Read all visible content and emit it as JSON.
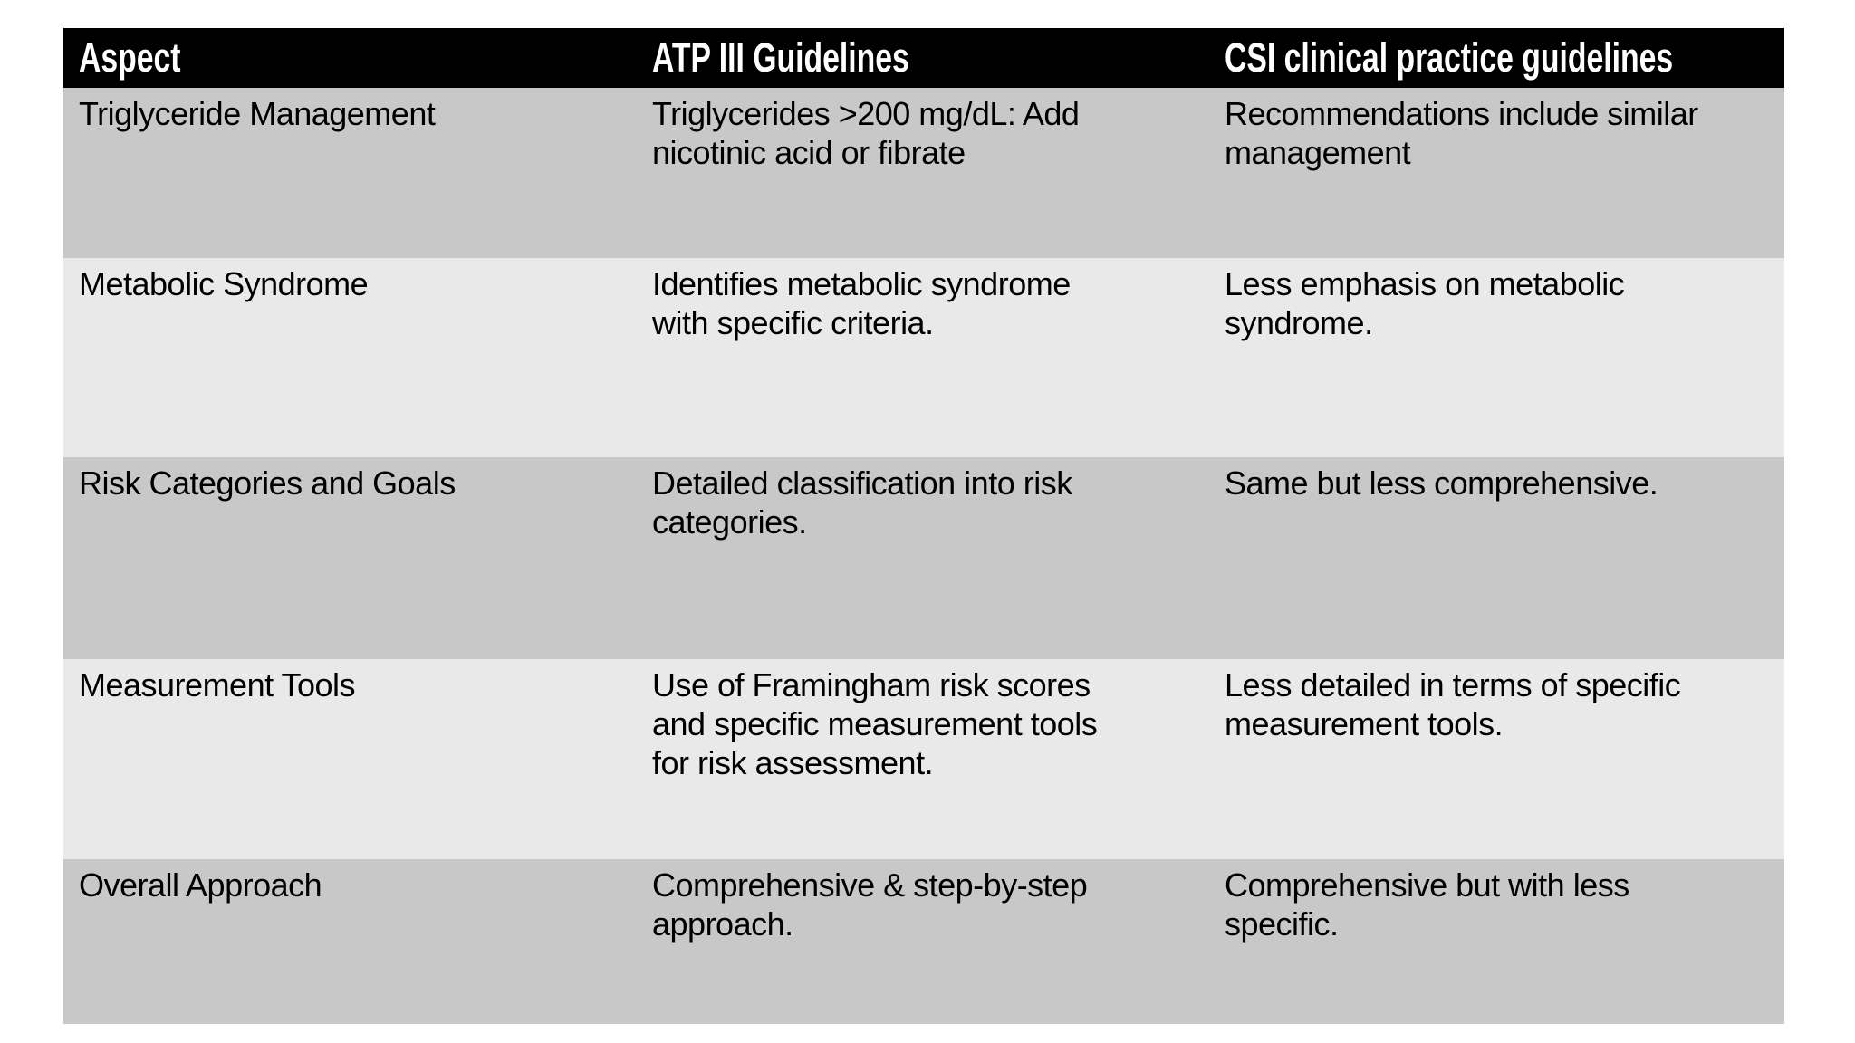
{
  "colors": {
    "page_bg": "#ffffff",
    "header_bg": "#000000",
    "header_text": "#ffffff",
    "row_band_dark": "#c8c8c8",
    "row_band_light": "#e9e9e9",
    "body_text": "#000000"
  },
  "table": {
    "columns": [
      "Aspect",
      "ATP III Guidelines",
      "CSI clinical practice guidelines"
    ],
    "rows": [
      {
        "cells": [
          "Triglyceride Management",
          "Triglycerides >200 mg/dL: Add\nnicotinic acid or fibrate",
          "Recommendations include similar\nmanagement"
        ]
      },
      {
        "cells": [
          "Metabolic Syndrome",
          "Identifies metabolic syndrome\nwith specific criteria.",
          "Less emphasis on metabolic\nsyndrome."
        ]
      },
      {
        "cells": [
          "Risk Categories and Goals",
          "Detailed classification into risk\ncategories.",
          "Same but less comprehensive."
        ]
      },
      {
        "cells": [
          "Measurement Tools",
          "Use of Framingham risk scores\nand specific measurement tools\nfor risk assessment.",
          "Less detailed in terms of specific\nmeasurement tools."
        ]
      },
      {
        "cells": [
          "Overall Approach",
          "Comprehensive & step-by-step\napproach.",
          "Comprehensive but with less\nspecific."
        ]
      }
    ]
  }
}
